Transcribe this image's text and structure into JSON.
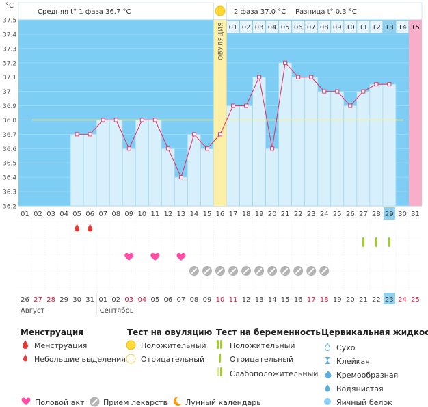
{
  "chart_data": {
    "type": "line",
    "y_unit": "°C",
    "ylim": [
      36.2,
      37.5
    ],
    "y_ticks": [
      "37.5",
      "37.4",
      "37.3",
      "37.2",
      "37.1",
      "37",
      "36.9",
      "36.8",
      "36.7",
      "36.6",
      "36.5",
      "36.4",
      "36.3",
      "36.2"
    ],
    "header": {
      "phase1": "Средняя t° 1 фаза 36.7 °C",
      "phase2": "2 фаза 37.0 °C",
      "difference": "Разница t° 0.3 °C"
    },
    "ovulation_label": "ОВУЛЯЦИЯ",
    "coverline": 36.8,
    "x": [
      "01",
      "02",
      "03",
      "04",
      "05",
      "06",
      "07",
      "08",
      "09",
      "10",
      "11",
      "12",
      "13",
      "14",
      "15",
      "16",
      "17",
      "18",
      "19",
      "20",
      "21",
      "22",
      "23",
      "24",
      "25",
      "26",
      "27",
      "28",
      "29",
      "30",
      "31"
    ],
    "temperatures": [
      null,
      null,
      null,
      null,
      36.7,
      36.7,
      36.8,
      36.8,
      36.6,
      36.8,
      36.8,
      36.6,
      36.4,
      36.7,
      36.6,
      36.7,
      36.9,
      36.9,
      37.1,
      36.6,
      37.2,
      37.1,
      37.1,
      37.0,
      37.0,
      36.9,
      37.0,
      37.05,
      37.05,
      null,
      null
    ],
    "ovulation_day": "16",
    "today": "29",
    "phase2_day_numbers": [
      "01",
      "02",
      "03",
      "04",
      "05",
      "06",
      "07",
      "08",
      "09",
      "10",
      "11",
      "12",
      "13",
      "14",
      "15"
    ],
    "markers": {
      "menstruation": [
        "05",
        "06"
      ],
      "intercourse": [
        "09",
        "11",
        "13"
      ],
      "medication": [
        "14",
        "15",
        "16",
        "17",
        "18",
        "19",
        "20",
        "21",
        "22",
        "23",
        "24"
      ],
      "pregnancy_test_negative": [
        "27",
        "28",
        "29"
      ]
    },
    "calendar_days": [
      "26",
      "27",
      "28",
      "29",
      "30",
      "31",
      "01",
      "02",
      "03",
      "04",
      "05",
      "06",
      "07",
      "08",
      "09",
      "10",
      "11",
      "12",
      "13",
      "14",
      "15",
      "16",
      "17",
      "18",
      "19",
      "20",
      "21",
      "22",
      "23",
      "24",
      "25"
    ],
    "calendar_weekend": [
      "27",
      "28",
      "03",
      "04",
      "10",
      "11",
      "17",
      "18",
      "24",
      "25"
    ],
    "calendar_today": "23",
    "months": [
      "Август",
      "Сентябрь"
    ]
  },
  "legend": {
    "menstruation": {
      "title": "Менструация",
      "items": [
        "Менструация",
        "Небольшие выделения"
      ]
    },
    "ovulation_test": {
      "title": "Тест на овуляцию",
      "items": [
        "Положительный",
        "Отрицательный"
      ]
    },
    "pregnancy_test": {
      "title": "Тест на беременность",
      "items": [
        "Положительный",
        "Отрицательный",
        "Слабоположительный"
      ]
    },
    "cervical": {
      "title": "Цервикальная жидкость",
      "items": [
        "Сухо",
        "Клейкая",
        "Кремообразная",
        "Водянистая",
        "Яичный белок"
      ]
    },
    "bottom": [
      "Половой акт",
      "Прием лекарств",
      "Лунный календарь"
    ]
  },
  "colors": {
    "plot_blue": "#7ecdf4",
    "bar_fill": "#d8f0fc",
    "bar_stroke": "#a6d9f2",
    "line": "#e0386a",
    "ovulation": "#fdf0a6",
    "last_day": "#f8aec8",
    "today": "#8fd0ef",
    "coverline": "#f3f0a0",
    "heart": "#ff4fa6",
    "drop": "#e53935",
    "pill": "#b4b4b4",
    "test": "#9fce2c",
    "sun": "#fdd835",
    "moon": "#ff9800",
    "weekend": "#e0193c"
  }
}
